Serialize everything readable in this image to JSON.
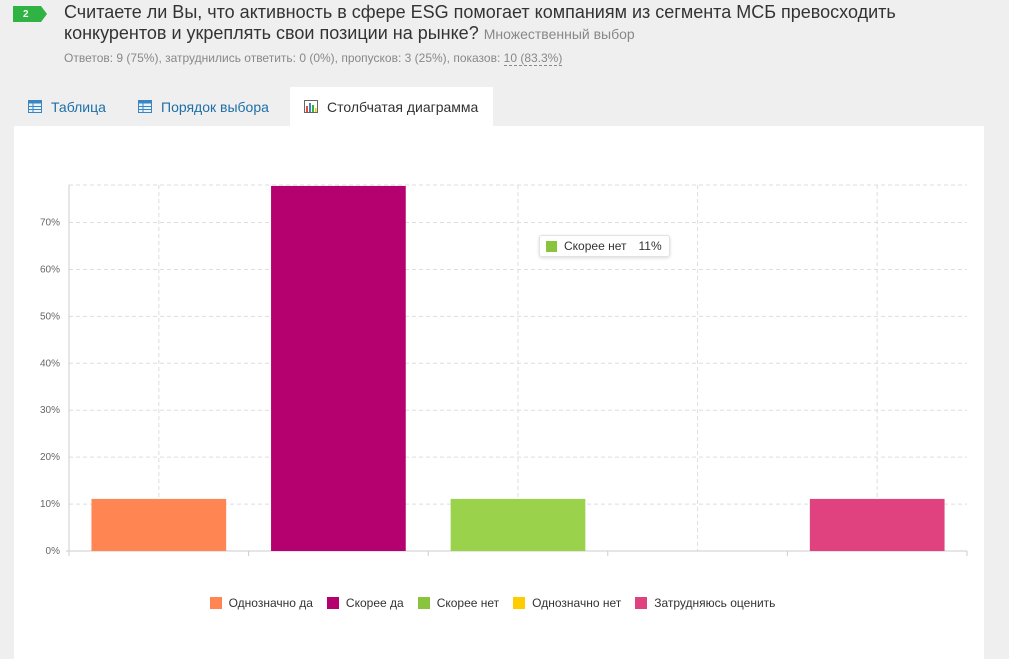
{
  "question": {
    "number": "2",
    "title": "Считаете ли Вы, что активность в сфере ESG помогает компаниям из сегмента МСБ превосходить конкурентов и укреплять свои позиции на рынке?",
    "type": "Множественный выбор",
    "stats_prefix": "Ответов: 9 (75%), затруднились ответить: 0 (0%), пропусков: 3 (25%), показов: ",
    "stats_link": "10 (83.3%)"
  },
  "tabs": [
    {
      "label": "Таблица",
      "icon": "table-icon"
    },
    {
      "label": "Порядок выбора",
      "icon": "table-icon"
    },
    {
      "label": "Столбчатая диаграмма",
      "icon": "bar-chart-icon"
    }
  ],
  "tooltip": {
    "label": "Скорее нет",
    "value": "11%",
    "color": "#8ac43f"
  },
  "chart_data": {
    "type": "bar",
    "categories": [
      "Однозначно да",
      "Скорее да",
      "Скорее нет",
      "Однозначно нет",
      "Затрудняюсь оценить"
    ],
    "values": [
      11.1,
      77.8,
      11.1,
      0,
      11.1
    ],
    "colors": [
      "#ff8552",
      "#b5006f",
      "#9bd24c",
      "#ffcc00",
      "#e0427f"
    ],
    "legend_colors": [
      "#ff8552",
      "#b5006f",
      "#8ac43f",
      "#ffcc00",
      "#e0427f"
    ],
    "yticks": [
      "0%",
      "10%",
      "20%",
      "30%",
      "40%",
      "50%",
      "60%",
      "70%"
    ],
    "ylim": [
      0,
      78
    ],
    "grid": true,
    "legend": "bottom"
  }
}
